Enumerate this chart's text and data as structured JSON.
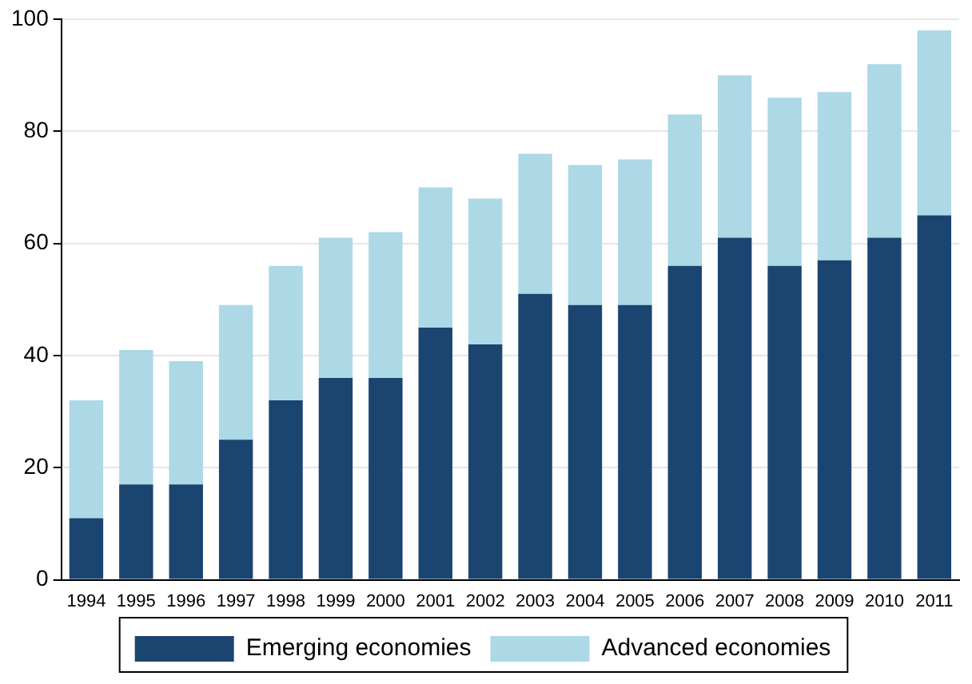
{
  "chart_data": {
    "type": "bar",
    "stacked": true,
    "categories": [
      "1994",
      "1995",
      "1996",
      "1997",
      "1998",
      "1999",
      "2000",
      "2001",
      "2002",
      "2003",
      "2004",
      "2005",
      "2006",
      "2007",
      "2008",
      "2009",
      "2010",
      "2011"
    ],
    "series": [
      {
        "name": "Emerging economies",
        "color": "#1a4571",
        "values": [
          11,
          17,
          17,
          25,
          32,
          36,
          36,
          45,
          42,
          51,
          49,
          49,
          56,
          61,
          56,
          57,
          61,
          65
        ]
      },
      {
        "name": "Advanced economies",
        "color": "#add8e6",
        "values": [
          21,
          24,
          22,
          24,
          24,
          25,
          26,
          25,
          26,
          25,
          25,
          26,
          27,
          29,
          30,
          30,
          31,
          33
        ]
      }
    ],
    "ylim": [
      0,
      100
    ],
    "yticks": [
      0,
      20,
      40,
      60,
      80,
      100
    ],
    "grid": "y",
    "legend": "bottom"
  }
}
